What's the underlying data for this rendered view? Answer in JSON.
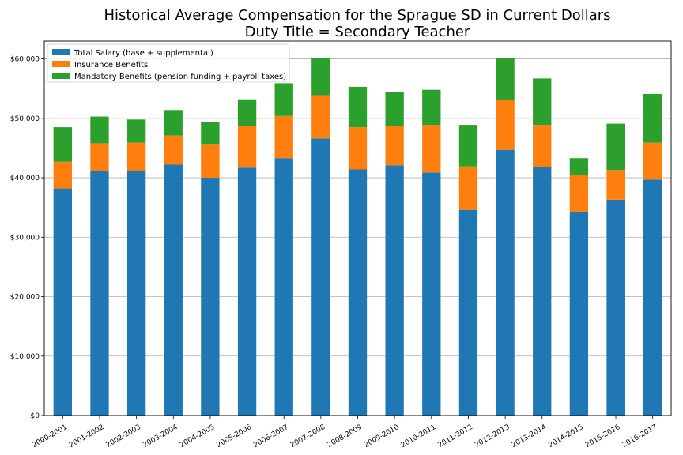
{
  "chart_data": {
    "type": "bar",
    "stacked": true,
    "title": "Historical Average Compensation for the Sprague SD in Current Dollars",
    "subtitle": "Duty Title = Secondary Teacher",
    "xlabel": "",
    "ylabel": "",
    "categories": [
      "2000-2001",
      "2001-2002",
      "2002-2003",
      "2003-2004",
      "2004-2005",
      "2005-2006",
      "2006-2007",
      "2007-2008",
      "2008-2009",
      "2009-2010",
      "2010-2011",
      "2011-2012",
      "2012-2013",
      "2013-2014",
      "2014-2015",
      "2015-2016",
      "2016-2017"
    ],
    "series": [
      {
        "name": "Total Salary (base + supplemental)",
        "color": "#1f77b4",
        "values": [
          38200,
          41100,
          41200,
          42200,
          40000,
          41700,
          43300,
          46600,
          41400,
          42100,
          40900,
          34600,
          44700,
          41800,
          34300,
          36300,
          39700
        ]
      },
      {
        "name": "Insurance Benefits",
        "color": "#ff7f0e",
        "values": [
          4500,
          4700,
          4700,
          4900,
          5700,
          7000,
          7100,
          7300,
          7100,
          6600,
          8000,
          7300,
          8400,
          7100,
          6200,
          5000,
          6200
        ]
      },
      {
        "name": "Mandatory Benefits (pension funding + payroll taxes)",
        "color": "#2ca02c",
        "values": [
          5800,
          4500,
          3900,
          4300,
          3700,
          4500,
          5500,
          6300,
          6800,
          5800,
          5900,
          7000,
          7000,
          7800,
          2800,
          7800,
          8200
        ]
      }
    ],
    "ylim": [
      0,
      63000
    ],
    "yticks": [
      0,
      10000,
      20000,
      30000,
      40000,
      50000,
      60000
    ],
    "ytick_labels": [
      "$0",
      "$10,000",
      "$20,000",
      "$30,000",
      "$40,000",
      "$50,000",
      "$60,000"
    ],
    "grid": "y",
    "legend_position": "upper-left"
  }
}
